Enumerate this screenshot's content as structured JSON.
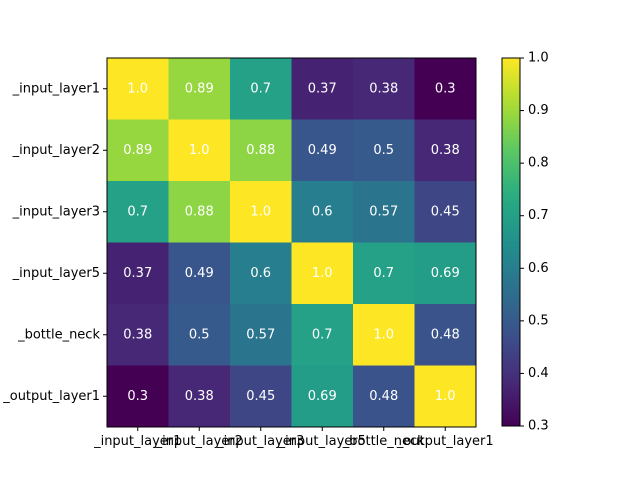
{
  "chart_data": {
    "type": "heatmap",
    "title": "",
    "xlabel": "",
    "ylabel": "",
    "row_labels": [
      "_input_layer1",
      "_input_layer2",
      "_input_layer3",
      "_input_layer5",
      "_bottle_neck",
      "_output_layer1"
    ],
    "col_labels": [
      "_input_layer1",
      "_input_layer2",
      "_input_layer3",
      "_input_layer5",
      "_bottle_neck",
      "_output_layer1"
    ],
    "values": [
      [
        1.0,
        0.89,
        0.7,
        0.37,
        0.38,
        0.3
      ],
      [
        0.89,
        1.0,
        0.88,
        0.49,
        0.5,
        0.38
      ],
      [
        0.7,
        0.88,
        1.0,
        0.6,
        0.57,
        0.45
      ],
      [
        0.37,
        0.49,
        0.6,
        1.0,
        0.7,
        0.69
      ],
      [
        0.38,
        0.5,
        0.57,
        0.7,
        1.0,
        0.48
      ],
      [
        0.3,
        0.38,
        0.45,
        0.69,
        0.48,
        1.0
      ]
    ],
    "value_labels": [
      [
        "1.0",
        "0.89",
        "0.7",
        "0.37",
        "0.38",
        "0.3"
      ],
      [
        "0.89",
        "1.0",
        "0.88",
        "0.49",
        "0.5",
        "0.38"
      ],
      [
        "0.7",
        "0.88",
        "1.0",
        "0.6",
        "0.57",
        "0.45"
      ],
      [
        "0.37",
        "0.49",
        "0.6",
        "1.0",
        "0.7",
        "0.69"
      ],
      [
        "0.38",
        "0.5",
        "0.57",
        "0.7",
        "1.0",
        "0.48"
      ],
      [
        "0.3",
        "0.38",
        "0.45",
        "0.69",
        "0.48",
        "1.0"
      ]
    ],
    "colormap": "viridis",
    "colorbar": {
      "range": [
        0.3,
        1.0
      ],
      "ticks": [
        0.3,
        0.4,
        0.5,
        0.6,
        0.7,
        0.8,
        0.9,
        1.0
      ],
      "tick_labels": [
        "0.3",
        "0.4",
        "0.5",
        "0.6",
        "0.7",
        "0.8",
        "0.9",
        "1.0"
      ]
    },
    "grid": false
  }
}
